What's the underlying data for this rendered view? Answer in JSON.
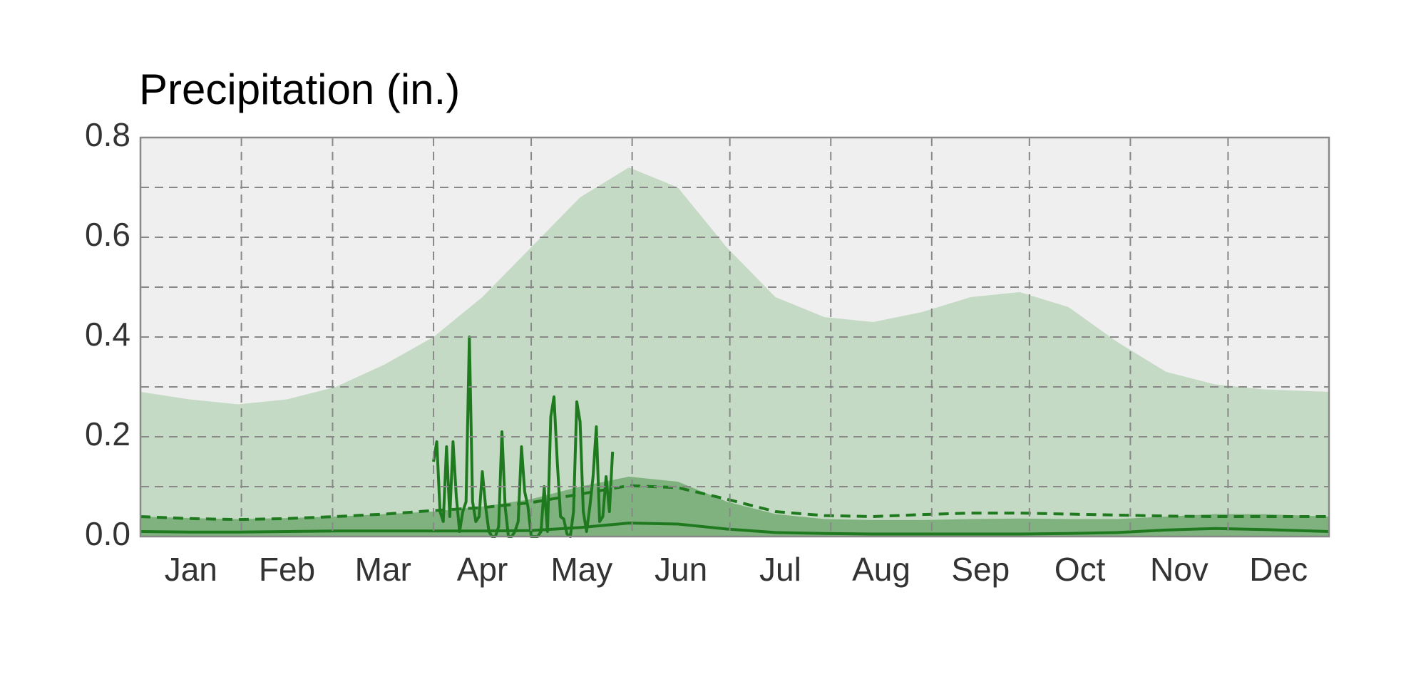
{
  "chart_data": {
    "type": "area",
    "title": "Precipitation (in.)",
    "xlim": [
      0,
      365
    ],
    "ylim": [
      0,
      0.8
    ],
    "yticks": [
      {
        "value": 0,
        "label": "0.0"
      },
      {
        "value": 0.2,
        "label": "0.2"
      },
      {
        "value": 0.4,
        "label": "0.4"
      },
      {
        "value": 0.6,
        "label": "0.6"
      },
      {
        "value": 0.8,
        "label": "0.8"
      }
    ],
    "y_minor_grid": [
      0.1,
      0.3,
      0.5,
      0.7
    ],
    "xticks": [
      {
        "value": 15.5,
        "label": "Jan"
      },
      {
        "value": 45,
        "label": "Feb"
      },
      {
        "value": 74.5,
        "label": "Mar"
      },
      {
        "value": 105,
        "label": "Apr"
      },
      {
        "value": 135.5,
        "label": "May"
      },
      {
        "value": 166,
        "label": "Jun"
      },
      {
        "value": 196.5,
        "label": "Jul"
      },
      {
        "value": 227.5,
        "label": "Aug"
      },
      {
        "value": 258,
        "label": "Sep"
      },
      {
        "value": 288.5,
        "label": "Oct"
      },
      {
        "value": 319,
        "label": "Nov"
      },
      {
        "value": 349.5,
        "label": "Dec"
      }
    ],
    "x_grid": [
      31,
      59,
      90,
      120,
      151,
      181,
      212,
      243,
      273,
      304,
      334
    ],
    "grid": true,
    "x": [
      0,
      15,
      30,
      45,
      60,
      75,
      90,
      105,
      120,
      135,
      150,
      165,
      180,
      195,
      210,
      225,
      240,
      255,
      270,
      285,
      300,
      315,
      330,
      345,
      365
    ],
    "series": [
      {
        "kind": "area",
        "color": "#c4dac4",
        "values": [
          0.29,
          0.275,
          0.265,
          0.275,
          0.3,
          0.345,
          0.4,
          0.48,
          0.58,
          0.68,
          0.74,
          0.7,
          0.58,
          0.48,
          0.44,
          0.43,
          0.45,
          0.48,
          0.49,
          0.46,
          0.39,
          0.33,
          0.305,
          0.295,
          0.29
        ]
      },
      {
        "kind": "area",
        "color": "#80b280",
        "values": [
          0.04,
          0.037,
          0.035,
          0.037,
          0.04,
          0.045,
          0.05,
          0.06,
          0.075,
          0.1,
          0.12,
          0.11,
          0.07,
          0.045,
          0.035,
          0.033,
          0.033,
          0.035,
          0.036,
          0.035,
          0.035,
          0.04,
          0.045,
          0.045,
          0.04
        ]
      },
      {
        "kind": "line",
        "dashed": true,
        "color": "#1f7a1f",
        "values": [
          0.04,
          0.036,
          0.034,
          0.036,
          0.04,
          0.045,
          0.052,
          0.058,
          0.068,
          0.085,
          0.102,
          0.098,
          0.075,
          0.05,
          0.042,
          0.04,
          0.044,
          0.047,
          0.047,
          0.045,
          0.043,
          0.041,
          0.04,
          0.04,
          0.04
        ]
      },
      {
        "kind": "line",
        "dashed": false,
        "color": "#1f7a1f",
        "values": [
          0.01,
          0.009,
          0.009,
          0.01,
          0.011,
          0.011,
          0.011,
          0.011,
          0.012,
          0.018,
          0.027,
          0.025,
          0.015,
          0.008,
          0.006,
          0.005,
          0.005,
          0.005,
          0.005,
          0.006,
          0.008,
          0.013,
          0.016,
          0.014,
          0.01
        ]
      },
      {
        "kind": "line",
        "dashed": false,
        "color": "#1f7a1f",
        "x": [
          90,
          91,
          92,
          93,
          94,
          95,
          96,
          97,
          98,
          99,
          100,
          101,
          102,
          103,
          104,
          105,
          106,
          107,
          108,
          109,
          110,
          111,
          112,
          113,
          114,
          115,
          116,
          117,
          118,
          119,
          120,
          121,
          122,
          123,
          124,
          125,
          126,
          127,
          128,
          129,
          130,
          131,
          132,
          133,
          134,
          135,
          136,
          137,
          138,
          139,
          140,
          141,
          142,
          143,
          144,
          145
        ],
        "values": [
          0.15,
          0.19,
          0.05,
          0.03,
          0.18,
          0.04,
          0.19,
          0.08,
          0.01,
          0.05,
          0.07,
          0.4,
          0.07,
          0.03,
          0.04,
          0.13,
          0.06,
          0.01,
          0.0,
          0.0,
          0.02,
          0.21,
          0.06,
          0.0,
          0.0,
          0.01,
          0.03,
          0.18,
          0.09,
          0.06,
          0.0,
          0.0,
          0.0,
          0.01,
          0.1,
          0.01,
          0.24,
          0.28,
          0.15,
          0.04,
          0.035,
          0.005,
          0.0,
          0.05,
          0.27,
          0.23,
          0.05,
          0.01,
          0.06,
          0.12,
          0.22,
          0.03,
          0.04,
          0.12,
          0.05,
          0.17
        ]
      }
    ]
  }
}
